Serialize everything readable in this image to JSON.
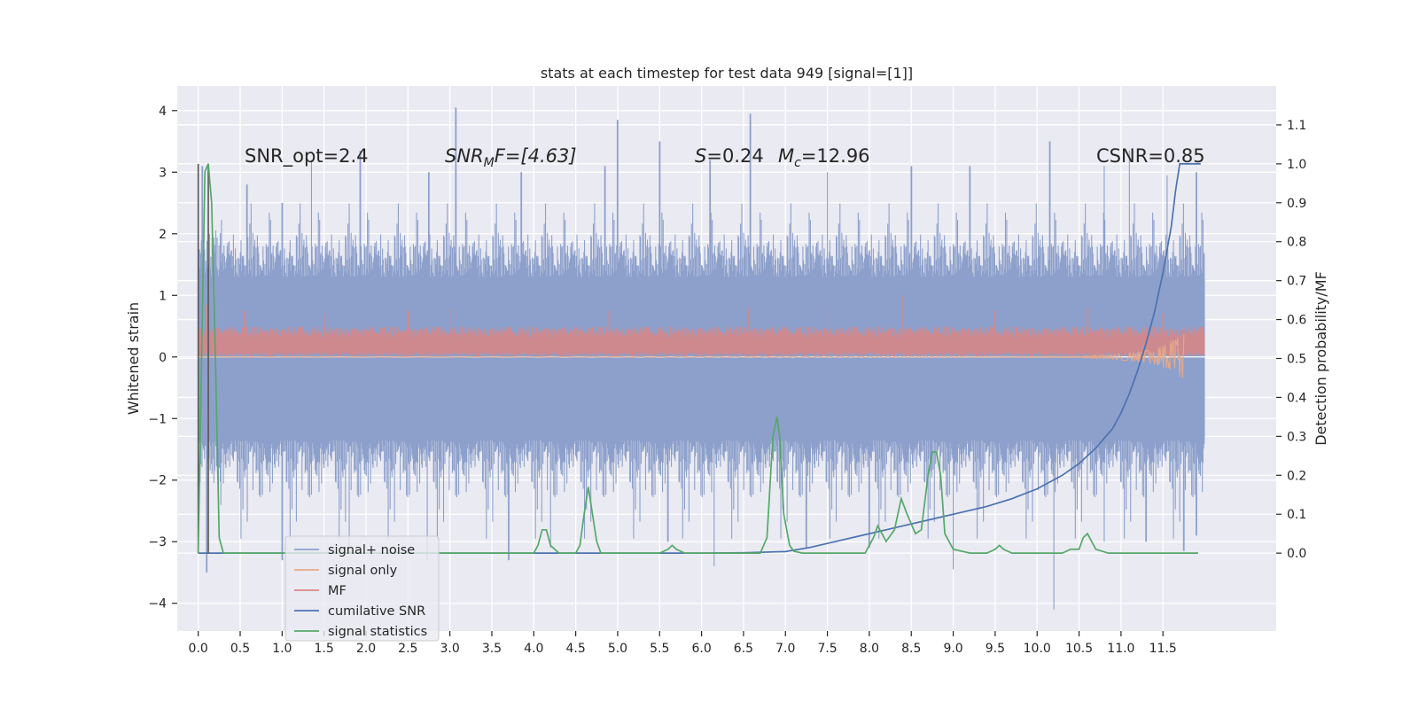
{
  "chart_data": {
    "type": "line",
    "title": "stats at each timestep for test data 949 [signal=[1]]",
    "xlabel": "",
    "ylabel": "Whitened strain",
    "y2label": "Detection probability/MF",
    "xlim": [
      -0.25,
      12.85
    ],
    "ylim": [
      -4.45,
      4.4
    ],
    "y2lim": [
      -0.2,
      1.2
    ],
    "x_ticks": [
      0.0,
      0.5,
      1.0,
      1.5,
      2.0,
      2.5,
      3.0,
      3.5,
      4.0,
      4.5,
      5.0,
      5.5,
      6.0,
      6.5,
      7.0,
      7.5,
      8.0,
      8.5,
      9.0,
      9.5,
      10.0,
      10.5,
      11.0,
      11.5
    ],
    "x_tick_labels": [
      "0.0",
      "0.5",
      "1.0",
      "1.5",
      "2.0",
      "2.5",
      "3.0",
      "3.5",
      "4.0",
      "4.5",
      "5.0",
      "5.5",
      "6.0",
      "6.5",
      "7.0",
      "7.5",
      "8.0",
      "8.5",
      "9.0",
      "9.5",
      "10.0",
      "10.5",
      "11.0",
      "11.5"
    ],
    "y_ticks": [
      -4,
      -3,
      -2,
      -1,
      0,
      1,
      2,
      3,
      4
    ],
    "y_tick_labels": [
      "−4",
      "−3",
      "−2",
      "−1",
      "0",
      "1",
      "2",
      "3",
      "4"
    ],
    "y2_ticks": [
      0.0,
      0.1,
      0.2,
      0.3,
      0.4,
      0.5,
      0.6,
      0.7,
      0.8,
      0.9,
      1.0,
      1.1
    ],
    "y2_tick_labels": [
      "0.0",
      "0.1",
      "0.2",
      "0.3",
      "0.4",
      "0.5",
      "0.6",
      "0.7",
      "0.8",
      "0.9",
      "1.0",
      "1.1"
    ],
    "grid": true,
    "legend_placement": "lower-left",
    "annotations": [
      "SNR_opt=2.4",
      "SNR",
      "M",
      "F=[4.63]",
      "S",
      "=0.24",
      "M",
      "c",
      "=12.96",
      "CSNR=0.85"
    ],
    "series": [
      {
        "name": "signal+ noise",
        "axis": "left",
        "color": "#8da0cb",
        "duration": 12.0,
        "envelope_upper": 1.25,
        "envelope_lower": -1.3,
        "peak_max": [
          [
            0.05,
            3.1
          ],
          [
            0.58,
            2.8
          ],
          [
            1.0,
            2.5
          ],
          [
            1.35,
            3.2
          ],
          [
            1.93,
            3.35
          ],
          [
            2.75,
            3.0
          ],
          [
            3.07,
            4.05
          ],
          [
            3.85,
            3.0
          ],
          [
            4.85,
            3.1
          ],
          [
            5.0,
            3.85
          ],
          [
            5.5,
            3.5
          ],
          [
            6.58,
            3.95
          ],
          [
            6.1,
            3.2
          ],
          [
            7.5,
            3.0
          ],
          [
            8.5,
            3.1
          ],
          [
            9.2,
            3.1
          ],
          [
            10.15,
            3.5
          ],
          [
            10.8,
            3.1
          ],
          [
            11.1,
            3.35
          ],
          [
            11.55,
            2.95
          ],
          [
            11.9,
            3.0
          ]
        ],
        "trough_min": [
          [
            0.1,
            -3.5
          ],
          [
            1.0,
            -3.3
          ],
          [
            1.8,
            -3.1
          ],
          [
            2.73,
            -3.3
          ],
          [
            3.7,
            -3.3
          ],
          [
            4.2,
            -3.1
          ],
          [
            5.6,
            -3.0
          ],
          [
            6.15,
            -3.4
          ],
          [
            7.25,
            -3.1
          ],
          [
            8.0,
            -3.1
          ],
          [
            9.0,
            -3.45
          ],
          [
            10.2,
            -4.1
          ],
          [
            10.8,
            -3.0
          ],
          [
            11.3,
            -3.0
          ],
          [
            11.75,
            -3.15
          ],
          [
            11.9,
            -2.9
          ]
        ]
      },
      {
        "name": "signal only",
        "axis": "left",
        "color": "#e5a989",
        "x": [
          0.0,
          10.5,
          10.8,
          11.0,
          11.2,
          11.4,
          11.5,
          11.6,
          11.7,
          11.75
        ],
        "amplitude": [
          0.0,
          0.01,
          0.03,
          0.05,
          0.08,
          0.13,
          0.18,
          0.24,
          0.33,
          0.38
        ]
      },
      {
        "name": "MF",
        "axis": "left",
        "color": "#d98585",
        "band_low": 0.0,
        "band_high": 0.55,
        "peak_max": [
          [
            0.1,
            0.85
          ],
          [
            0.55,
            0.75
          ],
          [
            1.5,
            0.7
          ],
          [
            2.5,
            0.75
          ],
          [
            3.0,
            0.8
          ],
          [
            4.9,
            0.75
          ],
          [
            6.55,
            0.8
          ],
          [
            7.5,
            0.8
          ],
          [
            8.4,
            1.0
          ],
          [
            9.5,
            0.75
          ],
          [
            10.6,
            0.8
          ],
          [
            11.5,
            0.7
          ]
        ]
      },
      {
        "name": "cumilative SNR",
        "axis": "right",
        "color": "#4c72b0",
        "x": [
          0.0,
          6.0,
          6.5,
          7.0,
          7.3,
          7.6,
          7.9,
          8.2,
          8.5,
          8.8,
          9.1,
          9.4,
          9.7,
          10.0,
          10.3,
          10.5,
          10.7,
          10.9,
          11.0,
          11.1,
          11.2,
          11.3,
          11.4,
          11.5,
          11.6,
          11.65,
          11.7,
          11.75,
          11.95
        ],
        "y": [
          0.0,
          0.0,
          0.001,
          0.004,
          0.015,
          0.03,
          0.045,
          0.06,
          0.075,
          0.09,
          0.105,
          0.12,
          0.14,
          0.165,
          0.2,
          0.23,
          0.27,
          0.32,
          0.36,
          0.41,
          0.47,
          0.54,
          0.62,
          0.72,
          0.84,
          0.93,
          1.0,
          1.0,
          1.0
        ]
      },
      {
        "name": "signal statistics",
        "axis": "right",
        "color": "#55a868",
        "x": [
          0.0,
          0.04,
          0.08,
          0.12,
          0.16,
          0.2,
          0.25,
          0.3,
          0.4,
          1.0,
          2.0,
          3.0,
          3.9,
          4.0,
          4.05,
          4.1,
          4.15,
          4.2,
          4.3,
          4.4,
          4.5,
          4.55,
          4.6,
          4.65,
          4.7,
          4.75,
          4.8,
          4.85,
          4.9,
          5.0,
          5.5,
          5.6,
          5.65,
          5.7,
          5.8,
          6.0,
          6.5,
          6.7,
          6.78,
          6.85,
          6.9,
          6.93,
          6.98,
          7.05,
          7.1,
          7.2,
          7.4,
          7.8,
          7.95,
          8.05,
          8.1,
          8.2,
          8.3,
          8.38,
          8.45,
          8.55,
          8.62,
          8.7,
          8.75,
          8.8,
          8.85,
          8.9,
          9.0,
          9.2,
          9.4,
          9.5,
          9.55,
          9.6,
          9.7,
          10.0,
          10.3,
          10.4,
          10.5,
          10.55,
          10.6,
          10.7,
          10.85,
          11.0,
          11.5,
          11.7,
          11.92
        ],
        "y": [
          0.0,
          0.5,
          0.98,
          1.0,
          0.9,
          0.55,
          0.04,
          0.0,
          0.0,
          0.0,
          0.0,
          0.0,
          0.0,
          0.0,
          0.02,
          0.06,
          0.06,
          0.02,
          0.0,
          0.0,
          0.0,
          0.02,
          0.1,
          0.17,
          0.1,
          0.03,
          0.0,
          0.0,
          0.0,
          0.0,
          0.0,
          0.01,
          0.02,
          0.01,
          0.0,
          0.0,
          0.0,
          0.0,
          0.04,
          0.3,
          0.35,
          0.3,
          0.1,
          0.02,
          0.005,
          0.0,
          0.0,
          0.0,
          0.0,
          0.04,
          0.07,
          0.03,
          0.06,
          0.14,
          0.1,
          0.05,
          0.06,
          0.2,
          0.26,
          0.26,
          0.2,
          0.05,
          0.01,
          0.0,
          0.0,
          0.01,
          0.02,
          0.01,
          0.0,
          0.0,
          0.0,
          0.01,
          0.01,
          0.04,
          0.05,
          0.01,
          0.0,
          0.0,
          0.0,
          0.0,
          0.0
        ]
      }
    ]
  }
}
